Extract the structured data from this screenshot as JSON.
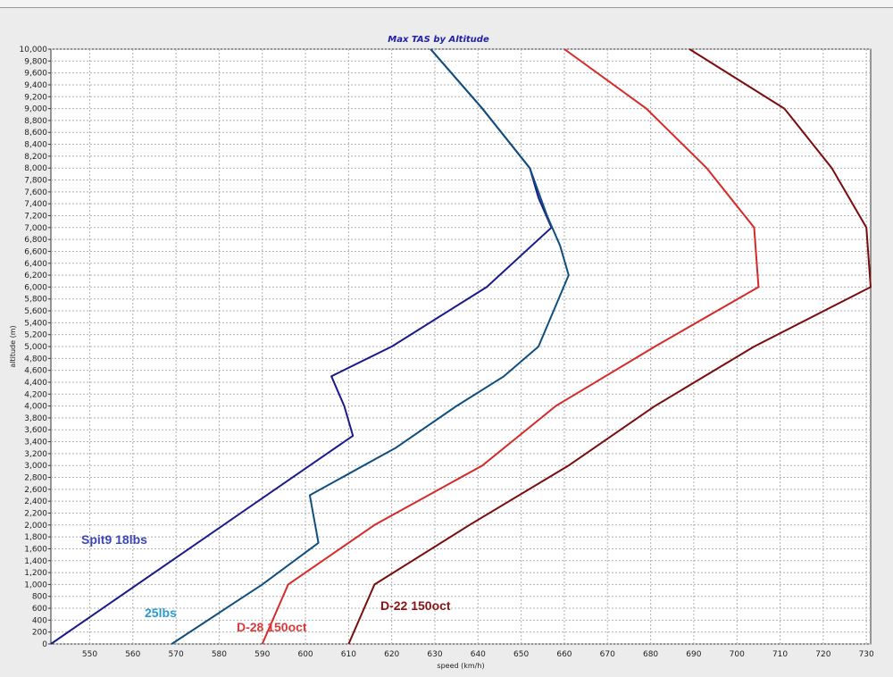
{
  "colors": {
    "background": "#ececec",
    "plot_background": "#ffffff",
    "grid": "#b0b0b0",
    "title": "#1f1fa8"
  },
  "chart_data": {
    "type": "line",
    "title": "Max TAS by Altitude",
    "xlabel": "speed (km/h)",
    "ylabel": "altitude (m)",
    "xlim": [
      541,
      731
    ],
    "ylim": [
      0,
      10000
    ],
    "x_ticks": [
      "550",
      "560",
      "570",
      "580",
      "590",
      "600",
      "610",
      "620",
      "630",
      "640",
      "650",
      "660",
      "670",
      "680",
      "690",
      "700",
      "710",
      "720",
      "730"
    ],
    "y_ticks": [
      "0",
      "200",
      "400",
      "600",
      "800",
      "1,000",
      "1,200",
      "1,400",
      "1,600",
      "1,800",
      "2,000",
      "2,200",
      "2,400",
      "2,600",
      "2,800",
      "3,000",
      "3,200",
      "3,400",
      "3,600",
      "3,800",
      "4,000",
      "4,200",
      "4,400",
      "4,600",
      "4,800",
      "5,000",
      "5,200",
      "5,400",
      "5,600",
      "5,800",
      "6,000",
      "6,200",
      "6,400",
      "6,600",
      "6,800",
      "7,000",
      "7,200",
      "7,400",
      "7,600",
      "7,800",
      "8,000",
      "8,200",
      "8,400",
      "8,600",
      "8,800",
      "9,000",
      "9,200",
      "9,400",
      "9,600",
      "9,800",
      "10,000"
    ],
    "grid": true,
    "legend": "none",
    "series": [
      {
        "name": "Spit9 18lbs",
        "color": "#1a1a8c",
        "label_color": "#3b47b8",
        "points": [
          [
            541,
            0
          ],
          [
            611,
            3500
          ],
          [
            609,
            4000
          ],
          [
            606,
            4500
          ],
          [
            620,
            5000
          ],
          [
            642,
            6000
          ],
          [
            657,
            7000
          ],
          [
            654,
            7500
          ],
          [
            652,
            8000
          ],
          [
            641,
            9000
          ],
          [
            629,
            10000
          ]
        ]
      },
      {
        "name": "25lbs",
        "color": "#0f4f7f",
        "label_color": "#2a9bd0",
        "points": [
          [
            569,
            0
          ],
          [
            590,
            1000
          ],
          [
            603,
            1700
          ],
          [
            601,
            2500
          ],
          [
            621,
            3300
          ],
          [
            635,
            4000
          ],
          [
            646,
            4500
          ],
          [
            654,
            5000
          ],
          [
            661,
            6200
          ],
          [
            659,
            6700
          ],
          [
            656,
            7200
          ],
          [
            652,
            8000
          ],
          [
            641,
            9000
          ],
          [
            629,
            10000
          ]
        ]
      },
      {
        "name": "D-28 150oct",
        "color": "#d42a2a",
        "label_color": "#d83a3a",
        "points": [
          [
            590,
            0
          ],
          [
            596,
            1000
          ],
          [
            616,
            2000
          ],
          [
            641,
            3000
          ],
          [
            658,
            4000
          ],
          [
            681,
            5000
          ],
          [
            705,
            6000
          ],
          [
            704,
            7000
          ],
          [
            693,
            8000
          ],
          [
            679,
            9000
          ],
          [
            660,
            10000
          ]
        ]
      },
      {
        "name": "D-22 150oct",
        "color": "#7a0d0d",
        "label_color": "#8a1414",
        "points": [
          [
            610,
            0
          ],
          [
            616,
            1000
          ],
          [
            638,
            2000
          ],
          [
            661,
            3000
          ],
          [
            681,
            4000
          ],
          [
            704,
            5000
          ],
          [
            731,
            6000
          ],
          [
            730,
            7000
          ],
          [
            722,
            8000
          ],
          [
            711,
            9000
          ],
          [
            689,
            10000
          ]
        ]
      }
    ]
  }
}
